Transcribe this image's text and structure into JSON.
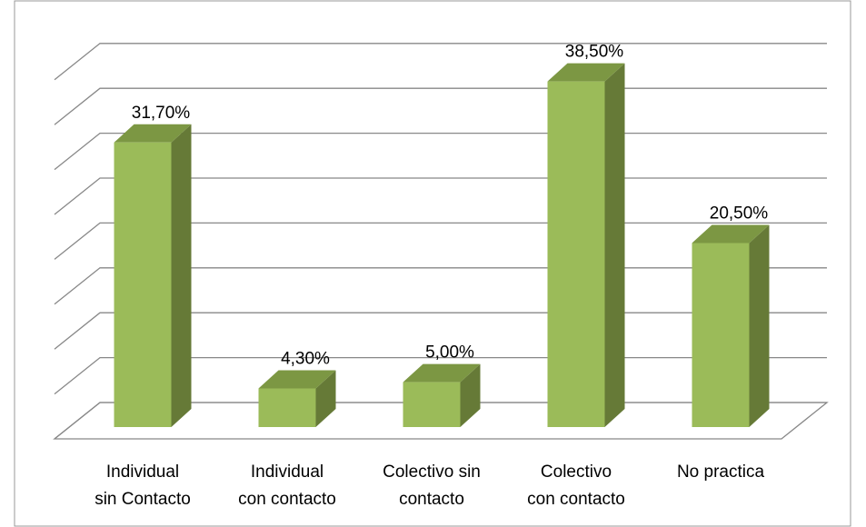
{
  "chart_data": {
    "type": "bar3d",
    "categories": [
      "Individual\nsin Contacto",
      "Individual\ncon contacto",
      "Colectivo sin\ncontacto",
      "Colectivo\ncon contacto",
      "No practica"
    ],
    "values": [
      31.7,
      4.3,
      5.0,
      38.5,
      20.5
    ],
    "value_labels": [
      "31,70%",
      "4,30%",
      "5,00%",
      "38,50%",
      "20,50%"
    ],
    "color": "#9bbb59",
    "ylim": [
      0,
      40
    ],
    "yticks": [
      0,
      5,
      10,
      15,
      20,
      25,
      30,
      35,
      40
    ],
    "grid": true
  }
}
